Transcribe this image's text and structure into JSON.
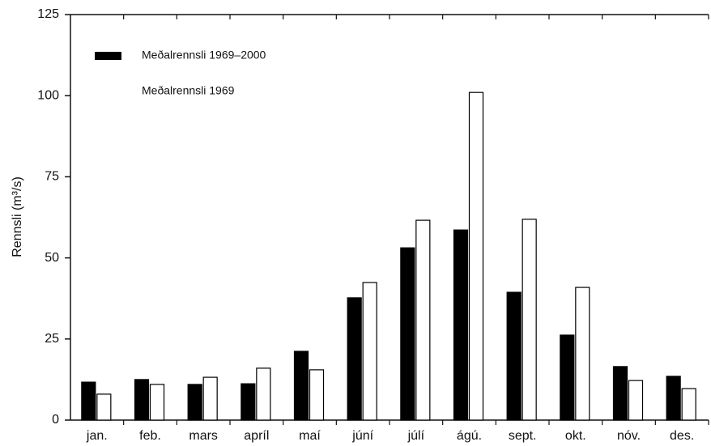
{
  "chart_data": {
    "type": "bar",
    "y_label": "Rennsli (m³/s)",
    "categories": [
      "jan.",
      "feb.",
      "mars",
      "apríl",
      "maí",
      "júní",
      "júlí",
      "ágú.",
      "sept.",
      "okt.",
      "nóv.",
      "des."
    ],
    "series": [
      {
        "name": "Meðalrennsli 1969–2000",
        "color": "#000000",
        "values": [
          11.7,
          12.5,
          11,
          11.2,
          21.2,
          37.7,
          53.1,
          58.6,
          39.4,
          26.2,
          16.5,
          13.5
        ]
      },
      {
        "name": "Meðalrennsli 1969",
        "color": "#ffffff",
        "values": [
          8,
          11,
          13.2,
          16,
          15.5,
          42.4,
          61.6,
          101,
          61.9,
          40.9,
          12.2,
          9.7
        ]
      }
    ],
    "ylim": [
      0,
      125
    ],
    "yticks": [
      0,
      25,
      50,
      75,
      100,
      125
    ],
    "grid": false,
    "legend": "top-left"
  }
}
